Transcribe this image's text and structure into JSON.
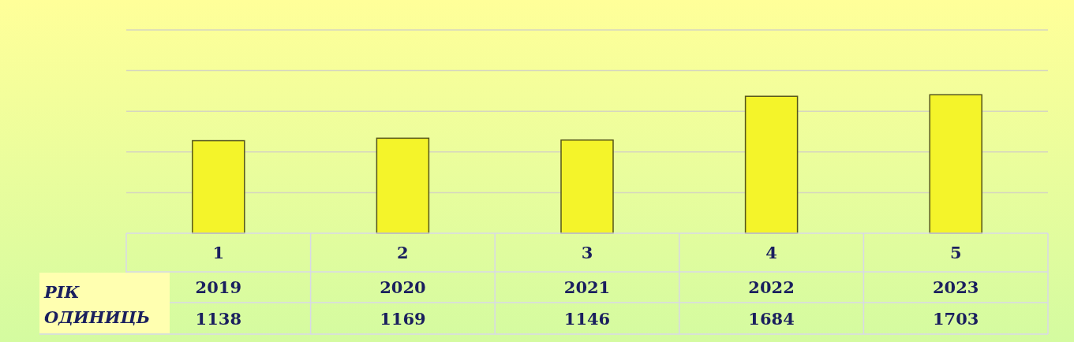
{
  "chart_data": {
    "type": "bar",
    "categories": [
      "1",
      "2",
      "3",
      "4",
      "5"
    ],
    "values": [
      1138,
      1169,
      1146,
      1684,
      1703
    ],
    "color": "#f4f42a",
    "ylim": [
      0,
      2500
    ],
    "yticks": [
      {
        "value": 500,
        "label": null
      },
      {
        "value": 1000,
        "label": null
      },
      {
        "value": 1500,
        "label": null
      },
      {
        "value": 2000,
        "label": null
      },
      {
        "value": 2500,
        "label": null
      }
    ],
    "tick_labels": "x",
    "grid": "y",
    "data_labels": true,
    "annotations": [
      "РІК",
      "ОДИНИЦЬ",
      "2019",
      "2020",
      "2021",
      "2022",
      "2023"
    ]
  }
}
